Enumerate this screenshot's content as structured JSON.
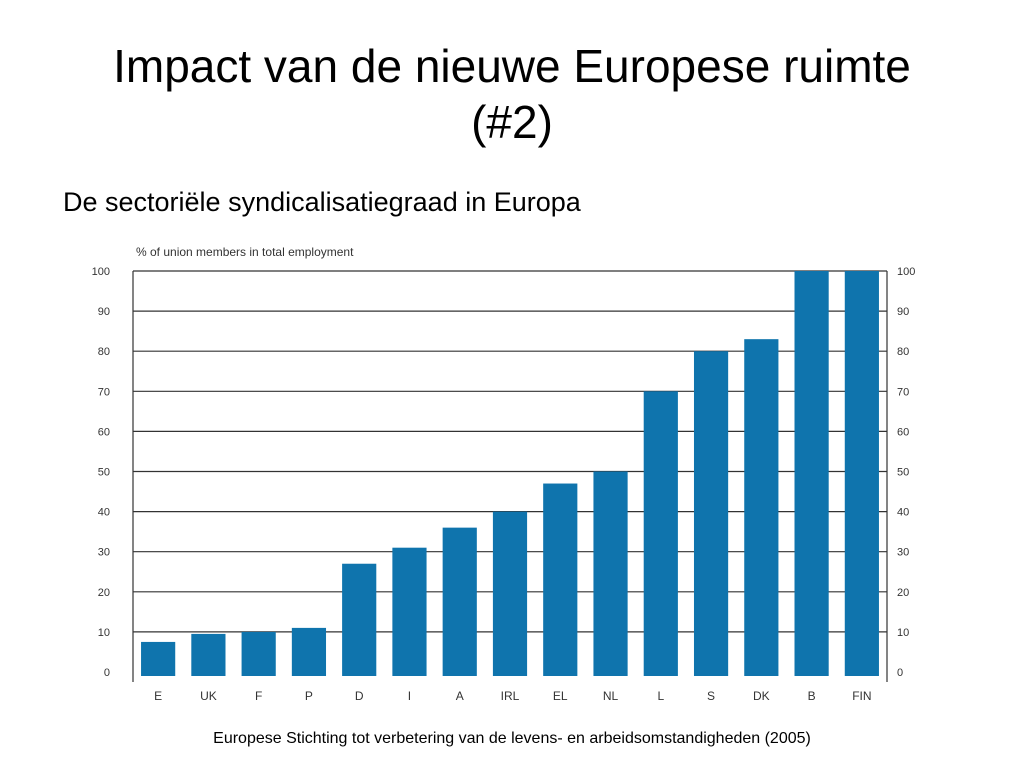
{
  "slide": {
    "title_line1": "Impact van de nieuwe Europese ruimte",
    "title_line2": "(#2)",
    "subtitle": "De sectoriële syndicalisatiegraad in Europa",
    "source": "Europese Stichting tot verbetering van de levens- en arbeidsomstandigheden (2005)"
  },
  "colors": {
    "bar": "#0f74ad",
    "grid": "#333333"
  },
  "chart_data": {
    "type": "bar",
    "unit_label": "% of union members in total employment",
    "categories": [
      "E",
      "UK",
      "F",
      "P",
      "D",
      "I",
      "A",
      "IRL",
      "EL",
      "NL",
      "L",
      "S",
      "DK",
      "B",
      "FIN"
    ],
    "values": [
      7.5,
      9.5,
      10,
      11,
      27,
      31,
      36,
      40,
      47,
      50,
      70,
      80,
      83,
      100,
      100
    ],
    "ylim": [
      0,
      100
    ],
    "yticks": [
      0,
      10,
      20,
      30,
      40,
      50,
      60,
      70,
      80,
      90,
      100
    ],
    "grid": true,
    "legend": "none"
  }
}
